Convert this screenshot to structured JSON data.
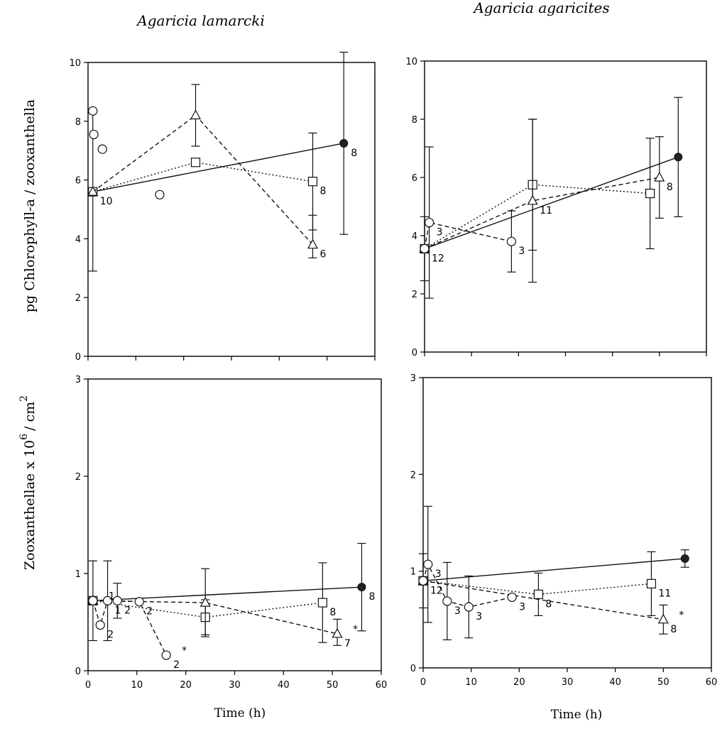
{
  "figure": {
    "col_titles": [
      "Agaricia lamarcki",
      "Agaricia agaricites"
    ],
    "y_title_top": "pg Chlorophyll-a / zooxanthella",
    "y_title_bottom": "Zooxanthellae x 10",
    "y_title_bottom_sup1": "6",
    "y_title_bottom_mid": "/ cm",
    "y_title_bottom_sup2": "2",
    "x_title": "Time (h)"
  },
  "chart_data": [
    {
      "type": "scatter",
      "id": "lamarcki-chl",
      "title": "Agaricia lamarcki",
      "xlabel": "",
      "ylabel": "pg Chlorophyll-a / zooxanthella",
      "xlim": [
        0,
        60
      ],
      "ylim": [
        0,
        10
      ],
      "yticks": [
        0,
        2,
        4,
        6,
        8,
        10
      ],
      "xticks": [],
      "series": [
        {
          "marker": "filled-circle",
          "dash": "solid",
          "points": [
            [
              1,
              5.6
            ],
            [
              53.5,
              7.25
            ]
          ],
          "errors": [
            [
              2.7,
              2.7
            ],
            [
              3.1,
              3.1
            ]
          ],
          "labels": [
            "10",
            "8"
          ]
        },
        {
          "marker": "square",
          "dash": "dotted",
          "points": [
            [
              1,
              5.6
            ],
            [
              22.5,
              6.6
            ],
            [
              47,
              5.95
            ]
          ],
          "errors": [
            null,
            null,
            [
              1.65,
              1.65
            ]
          ],
          "labels": [
            "",
            "",
            "8"
          ]
        },
        {
          "marker": "triangle",
          "dash": "dashed",
          "points": [
            [
              1,
              5.6
            ],
            [
              22.5,
              8.2
            ],
            [
              47,
              3.8
            ]
          ],
          "errors": [
            null,
            [
              1.05,
              1.05
            ],
            [
              1.0,
              0.45
            ]
          ],
          "labels": [
            "",
            "",
            "6"
          ]
        },
        {
          "marker": "circle",
          "dash": "none",
          "points": [
            [
              1,
              8.35
            ],
            [
              1.2,
              7.55
            ],
            [
              3,
              7.05
            ],
            [
              15,
              5.5
            ]
          ],
          "errors": [
            null,
            null,
            null,
            null
          ],
          "labels": [
            "",
            "",
            "",
            ""
          ]
        }
      ]
    },
    {
      "type": "scatter",
      "id": "agaricites-chl",
      "title": "Agaricia agaricites",
      "xlabel": "",
      "ylabel": "",
      "xlim": [
        0,
        60
      ],
      "ylim": [
        0,
        10
      ],
      "yticks": [
        0,
        2,
        4,
        6,
        8,
        10
      ],
      "xticks": [],
      "series": [
        {
          "marker": "filled-circle",
          "dash": "solid",
          "points": [
            [
              0,
              3.55
            ],
            [
              54,
              6.7
            ]
          ],
          "errors": [
            [
              1.1,
              1.1
            ],
            [
              2.05,
              2.05
            ]
          ],
          "labels": [
            "12",
            ""
          ]
        },
        {
          "marker": "square",
          "dash": "dotted",
          "points": [
            [
              0,
              3.55
            ],
            [
              23,
              5.75
            ],
            [
              48,
              5.45
            ]
          ],
          "errors": [
            null,
            [
              2.25,
              2.25
            ],
            [
              1.9,
              1.9
            ]
          ],
          "labels": [
            "",
            "",
            ""
          ]
        },
        {
          "marker": "triangle",
          "dash": "dashed",
          "points": [
            [
              0,
              3.55
            ],
            [
              23,
              5.2
            ],
            [
              50,
              6.0
            ]
          ],
          "errors": [
            null,
            [
              2.8,
              2.8
            ],
            [
              1.4,
              1.4
            ]
          ],
          "labels": [
            "",
            "11",
            "8"
          ]
        },
        {
          "marker": "circle",
          "dash": "dashed",
          "points": [
            [
              0,
              3.55
            ],
            [
              1,
              4.45
            ],
            [
              18.5,
              3.8
            ]
          ],
          "errors": [
            null,
            [
              2.6,
              2.6
            ],
            [
              1.05,
              1.05
            ]
          ],
          "labels": [
            "",
            "3",
            "3"
          ]
        }
      ]
    },
    {
      "type": "scatter",
      "id": "lamarcki-zoox",
      "title": "",
      "xlabel": "Time (h)",
      "ylabel": "Zooxanthellae x 10^6 / cm^2",
      "xlim": [
        0,
        60
      ],
      "ylim": [
        0,
        3
      ],
      "yticks": [
        0,
        1,
        2,
        3
      ],
      "xticks": [
        0,
        10,
        20,
        30,
        40,
        50,
        60
      ],
      "series": [
        {
          "marker": "filled-circle",
          "dash": "solid",
          "points": [
            [
              1,
              0.72
            ],
            [
              56,
              0.86
            ]
          ],
          "errors": [
            [
              0.41,
              0.41
            ],
            [
              0.45,
              0.45
            ]
          ],
          "labels": [
            "",
            "8"
          ]
        },
        {
          "marker": "square",
          "dash": "dotted",
          "points": [
            [
              1,
              0.72
            ],
            [
              24,
              0.55
            ],
            [
              48,
              0.7
            ]
          ],
          "errors": [
            null,
            [
              0.18,
              0.18
            ],
            [
              0.41,
              0.41
            ]
          ],
          "labels": [
            "",
            "",
            "8"
          ]
        },
        {
          "marker": "triangle",
          "dash": "dashed",
          "points": [
            [
              1,
              0.72
            ],
            [
              24,
              0.7
            ],
            [
              51,
              0.38
            ]
          ],
          "errors": [
            null,
            [
              0.35,
              0.35
            ],
            [
              0.15,
              0.12
            ]
          ],
          "labels": [
            "",
            "",
            "7"
          ]
        },
        {
          "marker": "circle",
          "dash": "dashed",
          "points": [
            [
              1,
              0.72
            ],
            [
              2.5,
              0.47
            ],
            [
              4,
              0.72
            ],
            [
              6,
              0.72
            ],
            [
              10.5,
              0.71
            ],
            [
              16,
              0.16
            ]
          ],
          "errors": [
            null,
            null,
            [
              0.41,
              0.41
            ],
            [
              0.18,
              0.18
            ],
            null,
            null
          ],
          "labels": [
            "",
            "2",
            "1",
            "2",
            "2",
            "2"
          ]
        }
      ],
      "annotations": [
        {
          "text": "1",
          "x": 1,
          "y": 0.72
        },
        {
          "text": "*",
          "x": 16,
          "y": 0.16
        },
        {
          "text": "*",
          "x": 51,
          "y": 0.38
        }
      ]
    },
    {
      "type": "scatter",
      "id": "agaricites-zoox",
      "title": "",
      "xlabel": "Time (h)",
      "ylabel": "",
      "xlim": [
        0,
        60
      ],
      "ylim": [
        0,
        3
      ],
      "yticks": [
        0,
        1,
        2,
        3
      ],
      "xticks": [
        0,
        10,
        20,
        30,
        40,
        50,
        60
      ],
      "series": [
        {
          "marker": "filled-circle",
          "dash": "solid",
          "points": [
            [
              0,
              0.9
            ],
            [
              54.5,
              1.13
            ]
          ],
          "errors": [
            [
              0.28,
              0.28
            ],
            [
              0.09,
              0.09
            ]
          ],
          "labels": [
            "12",
            ""
          ]
        },
        {
          "marker": "square",
          "dash": "dotted",
          "points": [
            [
              0,
              0.9
            ],
            [
              24,
              0.76
            ],
            [
              47.5,
              0.87
            ]
          ],
          "errors": [
            null,
            [
              0.22,
              0.22
            ],
            [
              0.33,
              0.33
            ]
          ],
          "labels": [
            "",
            "8",
            "11"
          ]
        },
        {
          "marker": "triangle",
          "dash": "dashed",
          "points": [
            [
              0,
              0.9
            ],
            [
              50,
              0.5
            ]
          ],
          "errors": [
            null,
            [
              0.15,
              0.15
            ]
          ],
          "labels": [
            "",
            "8"
          ]
        },
        {
          "marker": "circle",
          "dash": "dashed",
          "points": [
            [
              0,
              0.9
            ],
            [
              1,
              1.07
            ],
            [
              5,
              0.69
            ],
            [
              9.5,
              0.63
            ],
            [
              18.5,
              0.73
            ]
          ],
          "errors": [
            null,
            [
              0.6,
              0.6
            ],
            [
              0.4,
              0.4
            ],
            [
              0.32,
              0.32
            ],
            null
          ],
          "labels": [
            "",
            "3",
            "3",
            "3",
            "3"
          ]
        }
      ],
      "annotations": [
        {
          "text": "*",
          "x": 50,
          "y": 0.5
        }
      ]
    }
  ]
}
